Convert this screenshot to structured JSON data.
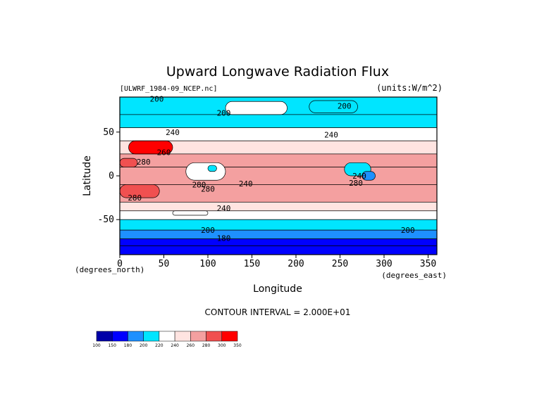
{
  "chart_data": {
    "type": "heatmap",
    "title": "Upward Longwave Radiation Flux",
    "source_label": "[ULWRF_1984-09_NCEP.nc]",
    "units_label": "(units:W/m^2)",
    "xlabel": "Longitude",
    "ylabel": "Latitude",
    "x_unit_label": "(degrees_east)",
    "y_unit_label": "(degrees_north)",
    "xlim": [
      0,
      360
    ],
    "ylim": [
      -90,
      90
    ],
    "x_ticks": [
      0,
      50,
      100,
      150,
      200,
      250,
      300,
      350
    ],
    "y_ticks": [
      -50,
      0,
      50
    ],
    "footer": "CONTOUR INTERVAL = 2.000E+01",
    "colorbar": {
      "levels": [
        "100",
        "150",
        "180",
        "200",
        "220",
        "240",
        "260",
        "280",
        "300",
        "350"
      ],
      "colors": [
        "#0000a8",
        "#0000ff",
        "#1e90ff",
        "#00e5ff",
        "#ffffff",
        "#ffe4e1",
        "#f4a0a0",
        "#f05050",
        "#ff0000"
      ]
    },
    "contour_labels": [
      {
        "text": "200",
        "lon": 42,
        "lat": 88
      },
      {
        "text": "200",
        "lon": 118,
        "lat": 72
      },
      {
        "text": "200",
        "lon": 255,
        "lat": 80
      },
      {
        "text": "240",
        "lon": 60,
        "lat": 50
      },
      {
        "text": "240",
        "lon": 240,
        "lat": 47
      },
      {
        "text": "260",
        "lon": 50,
        "lat": 27
      },
      {
        "text": "280",
        "lon": 27,
        "lat": 16
      },
      {
        "text": "280",
        "lon": 90,
        "lat": -10
      },
      {
        "text": "280",
        "lon": 100,
        "lat": -15
      },
      {
        "text": "240",
        "lon": 143,
        "lat": -9
      },
      {
        "text": "240",
        "lon": 272,
        "lat": 0
      },
      {
        "text": "280",
        "lon": 268,
        "lat": -8
      },
      {
        "text": "280",
        "lon": 17,
        "lat": -25
      },
      {
        "text": "240",
        "lon": 118,
        "lat": -37
      },
      {
        "text": "200",
        "lon": 100,
        "lat": -62
      },
      {
        "text": "180",
        "lon": 118,
        "lat": -71
      },
      {
        "text": "200",
        "lon": 327,
        "lat": -62
      }
    ],
    "field_bands": [
      {
        "lat": [
          70,
          90
        ],
        "value": 210
      },
      {
        "lat": [
          55,
          70
        ],
        "value": 205
      },
      {
        "lat": [
          40,
          55
        ],
        "value": 235
      },
      {
        "lat": [
          25,
          40
        ],
        "value": 255
      },
      {
        "lat": [
          10,
          25
        ],
        "value": 275
      },
      {
        "lat": [
          -10,
          10
        ],
        "value": 265
      },
      {
        "lat": [
          -30,
          -10
        ],
        "value": 275
      },
      {
        "lat": [
          -40,
          -30
        ],
        "value": 250
      },
      {
        "lat": [
          -50,
          -40
        ],
        "value": 232
      },
      {
        "lat": [
          -62,
          -50
        ],
        "value": 210
      },
      {
        "lat": [
          -72,
          -62
        ],
        "value": 190
      },
      {
        "lat": [
          -80,
          -72
        ],
        "value": 175
      },
      {
        "lat": [
          -90,
          -80
        ],
        "value": 150
      }
    ],
    "field_patches": [
      {
        "lon": [
          10,
          60
        ],
        "lat": [
          25,
          40
        ],
        "value": 310
      },
      {
        "lon": [
          0,
          20
        ],
        "lat": [
          10,
          20
        ],
        "value": 290
      },
      {
        "lon": [
          0,
          45
        ],
        "lat": [
          -25,
          -10
        ],
        "value": 290
      },
      {
        "lon": [
          75,
          120
        ],
        "lat": [
          -5,
          15
        ],
        "value": 230
      },
      {
        "lon": [
          100,
          110
        ],
        "lat": [
          5,
          12
        ],
        "value": 205
      },
      {
        "lon": [
          255,
          285
        ],
        "lat": [
          0,
          15
        ],
        "value": 215
      },
      {
        "lon": [
          275,
          290
        ],
        "lat": [
          -5,
          5
        ],
        "value": 195
      },
      {
        "lon": [
          120,
          190
        ],
        "lat": [
          70,
          85
        ],
        "value": 228
      },
      {
        "lon": [
          215,
          270
        ],
        "lat": [
          72,
          86
        ],
        "value": 200
      },
      {
        "lon": [
          60,
          100
        ],
        "lat": [
          -45,
          -40
        ],
        "value": 225
      }
    ]
  }
}
